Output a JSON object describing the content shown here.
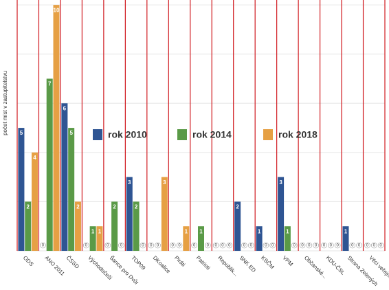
{
  "chart_data": {
    "type": "bar",
    "y_label": "počet míst v zastupitelstvu",
    "categories": [
      "ODS",
      "ANO 2011",
      "ČSSD",
      "Východočeši",
      "Šance pro Dvůr",
      "TOP09",
      "DKoalice",
      "Piráti",
      "Patrioti",
      "Republik...",
      "SNK ED",
      "KSČM",
      "VPM",
      "Občanské...",
      "KDU-ČSL",
      "Strana Zelených",
      "Věci veřejné"
    ],
    "series": [
      {
        "name": "rok 2010",
        "color": "#2f5593",
        "values": [
          5,
          0,
          6,
          0,
          0,
          3,
          0,
          0,
          0,
          0,
          2,
          1,
          3,
          0,
          0,
          1,
          0
        ]
      },
      {
        "name": "rok 2014",
        "color": "#5a9a47",
        "values": [
          2,
          7,
          5,
          1,
          2,
          2,
          0,
          0,
          1,
          0,
          0,
          0,
          1,
          0,
          0,
          0,
          0
        ]
      },
      {
        "name": "rok 2018",
        "color": "#e6a044",
        "values": [
          4,
          10,
          2,
          1,
          0,
          0,
          3,
          1,
          0,
          0,
          0,
          0,
          0,
          0,
          0,
          0,
          0
        ]
      }
    ],
    "ylim": [
      0,
      10.2
    ],
    "yticks": [
      0,
      2,
      4,
      6,
      8,
      10
    ],
    "grid": true,
    "separator_color": "#d0191f"
  }
}
